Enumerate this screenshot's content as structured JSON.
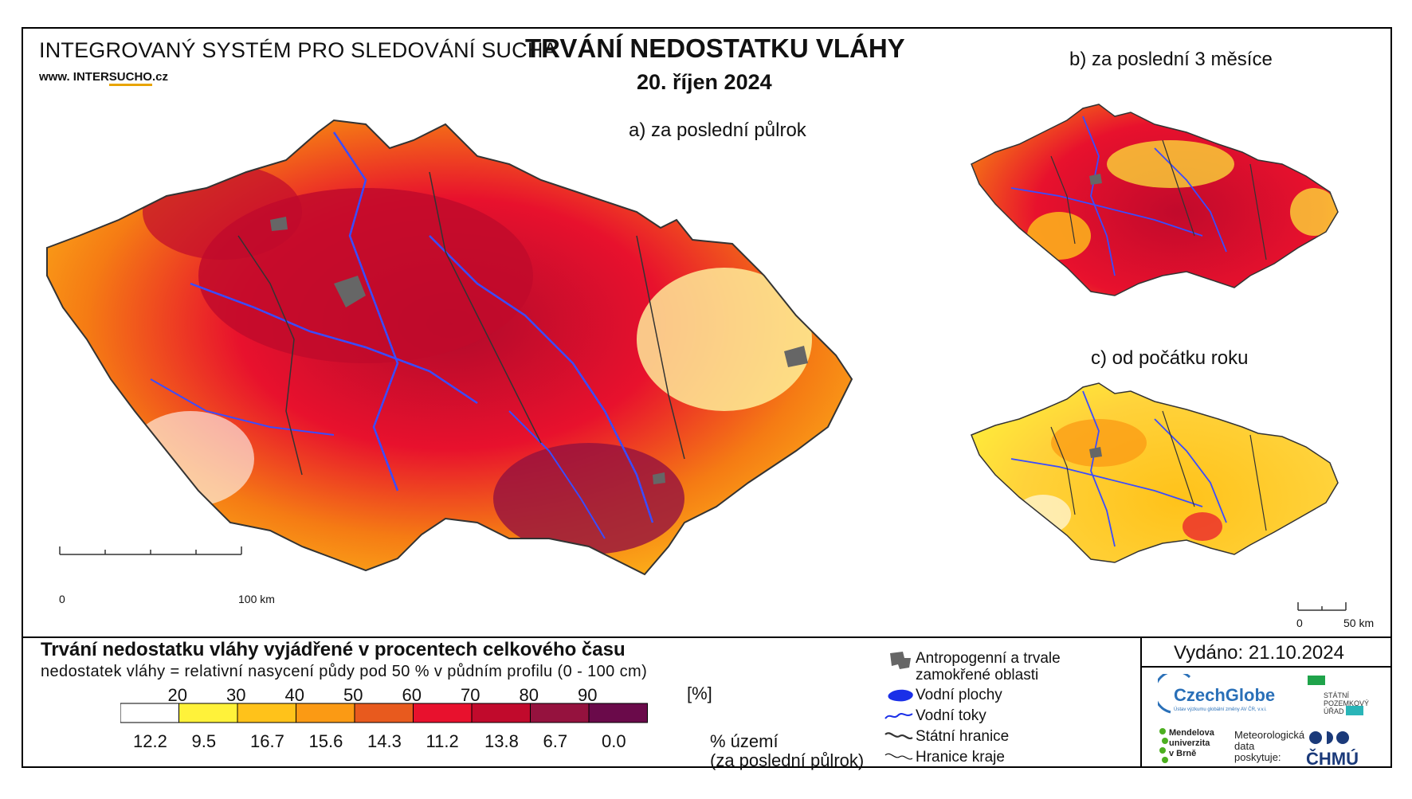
{
  "header": {
    "system_title": "INTEGROVANÝ SYSTÉM PRO SLEDOVÁNÍ SUCHA",
    "url_prefix": "www. INTER",
    "url_highlight": "SUCHO",
    "url_suffix": ".cz",
    "main_title": "TRVÁNÍ NEDOSTATKU VLÁHY",
    "date": "20. říjen 2024"
  },
  "maps": {
    "a_title": "a) za poslední půlrok",
    "b_title": "b) za poslední 3 měsíce",
    "c_title": "c) od počátku roku",
    "a_scale": {
      "start": "0",
      "end": "100 km"
    },
    "c_scale": {
      "start": "0",
      "end": "50 km"
    }
  },
  "legend": {
    "title": "Trvání nedostatku vláhy vyjádřené v procentech celkového času",
    "subtitle": "nedostatek vláhy = relativní nasycení půdy pod 50 % v půdním profilu (0 - 100 cm)",
    "unit": "[%]",
    "thresholds": [
      "20",
      "30",
      "40",
      "50",
      "60",
      "70",
      "80",
      "90"
    ],
    "classes": [
      {
        "color": "#ffffff",
        "share": "12.2"
      },
      {
        "color": "#fff23a",
        "share": "9.5"
      },
      {
        "color": "#ffc21a",
        "share": "16.7"
      },
      {
        "color": "#fb9a14",
        "share": "15.6"
      },
      {
        "color": "#e85a1e",
        "share": "14.3"
      },
      {
        "color": "#e8112d",
        "share": "11.2"
      },
      {
        "color": "#c10a2c",
        "share": "13.8"
      },
      {
        "color": "#95123e",
        "share": "6.7"
      },
      {
        "color": "#6a0a4a",
        "share": "0.0"
      }
    ],
    "share_caption_1": "% území",
    "share_caption_2": "(za poslední půlrok)"
  },
  "symbols": {
    "urban": "Antropogenní a trvale",
    "urban_2": "zamokřené oblasti",
    "water_bodies": "Vodní plochy",
    "rivers": "Vodní toky",
    "border": "Státní hranice",
    "regions": "Hranice kraje"
  },
  "footer": {
    "issued": "Vydáno: 21.10.2024",
    "czechglobe": "CzechGlobe",
    "czechglobe_sub": "Ústav výzkumu globální změny AV ČR, v.v.i.",
    "spu_1": "STÁTNÍ",
    "spu_2": "POZEMKOVÝ",
    "spu_3": "ÚŘAD",
    "mendel_1": "Mendelova",
    "mendel_2": "univerzita",
    "mendel_3": "v Brně",
    "meteo_1": "Meteorologická",
    "meteo_2": "data",
    "meteo_3": "poskytuje:",
    "chmu": "ČHMÚ"
  },
  "colors": {
    "river": "#3a4cff",
    "urban": "#666666",
    "border": "#333333"
  }
}
